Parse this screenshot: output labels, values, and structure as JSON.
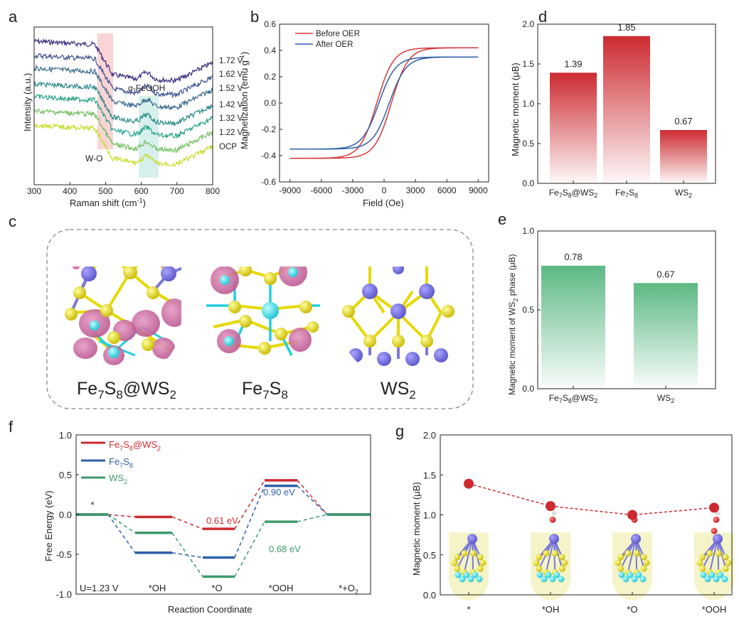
{
  "panels": {
    "a": {
      "label": "a",
      "xlabel": "Raman shift (cm",
      "xlabel_sup": "-1",
      "xlabel_tail": ")",
      "ylabel": "Intensity (a.u.)",
      "xticks": [
        "300",
        "400",
        "500",
        "600",
        "700",
        "800"
      ],
      "annotations": {
        "left": "W-O",
        "right": "α-FeOOH"
      },
      "legend": [
        "1.72 V",
        "1.62 V",
        "1.52 V",
        "1.42 V",
        "1.32 V",
        "1.22 V",
        "OCP"
      ],
      "colors": [
        "#3b2c7a",
        "#3d4f8d",
        "#3a6b8f",
        "#2f8b8c",
        "#2aa38a",
        "#73c060",
        "#c7dc2a"
      ]
    },
    "b": {
      "label": "b",
      "xlabel": "Field (Oe)",
      "ylabel": "Magnetization (emu g",
      "ylabel_sup": "-1",
      "ylabel_tail": ")",
      "xticks": [
        "-9000",
        "-6000",
        "-3000",
        "0",
        "3000",
        "6000",
        "9000"
      ],
      "yticks": [
        "0.6",
        "0.4",
        "0.2",
        "0.0",
        "-0.2",
        "-0.4",
        "-0.6"
      ],
      "legend": [
        "Before OER",
        "After  OER"
      ],
      "colors": [
        "#d9363a",
        "#2f5fa8"
      ]
    },
    "c": {
      "label": "c",
      "structures": [
        "Fe7S8@WS2",
        "Fe7S8",
        "WS2"
      ]
    },
    "d": {
      "label": "d",
      "ylabel": "Magnetic moment (μB)"
    },
    "e": {
      "label": "e",
      "ylabel_pre": "Magnetic moment of WS",
      "ylabel_sub": "2",
      "ylabel_post": " phase (μB)"
    },
    "f": {
      "label": "f",
      "ylabel": "Free Energy (eV)",
      "xlabel": "Reaction Coordinate",
      "u_label": "U=1.23 V",
      "annotations": [
        "0.61 eV",
        "0.90 eV",
        "0.68 eV"
      ]
    },
    "g": {
      "label": "g",
      "ylabel": "Magnetic moment (μB)"
    }
  },
  "chart_data": [
    {
      "id": "a",
      "type": "line",
      "title": "",
      "xlabel": "Raman shift (cm-1)",
      "ylabel": "Intensity (a.u.)",
      "xlim": [
        300,
        800
      ],
      "series": [
        {
          "name": "1.72 V"
        },
        {
          "name": "1.62 V"
        },
        {
          "name": "1.52 V"
        },
        {
          "name": "1.42 V"
        },
        {
          "name": "1.32 V"
        },
        {
          "name": "1.22 V"
        },
        {
          "name": "OCP"
        }
      ]
    },
    {
      "id": "b",
      "type": "line",
      "xlabel": "Field (Oe)",
      "ylabel": "Magnetization (emu g-1)",
      "xlim": [
        -10000,
        10000
      ],
      "ylim": [
        -0.6,
        0.6
      ],
      "series": [
        {
          "name": "Before OER",
          "x": [
            -9000,
            -6000,
            -3000,
            -1500,
            0,
            1500,
            3000,
            6000,
            9000
          ],
          "y_ascending": [
            -0.43,
            -0.43,
            -0.41,
            -0.32,
            -0.05,
            0.28,
            0.37,
            0.41,
            0.42
          ],
          "y_descending": [
            -0.43,
            -0.42,
            -0.37,
            -0.28,
            0.05,
            0.32,
            0.4,
            0.42,
            0.42
          ]
        },
        {
          "name": "After  OER",
          "x": [
            -9000,
            -6000,
            -3000,
            -1500,
            0,
            1500,
            3000,
            6000,
            9000
          ],
          "y_ascending": [
            -0.35,
            -0.35,
            -0.32,
            -0.24,
            0.0,
            0.22,
            0.31,
            0.33,
            0.35
          ],
          "y_descending": [
            -0.35,
            -0.34,
            -0.3,
            -0.2,
            0.05,
            0.24,
            0.32,
            0.34,
            0.35
          ]
        }
      ]
    },
    {
      "id": "d",
      "type": "bar",
      "categories": [
        "Fe7S8@WS2",
        "Fe7S8",
        "WS2"
      ],
      "values": [
        1.39,
        1.85,
        0.67
      ],
      "ylabel": "Magnetic moment (μB)",
      "ylim": [
        0,
        2.0
      ],
      "yticks": [
        "0.0",
        "0.5",
        "1.0",
        "1.5",
        "2.0"
      ],
      "color": "#cc2a30"
    },
    {
      "id": "e",
      "type": "bar",
      "categories": [
        "Fe7S8@WS2",
        "WS2"
      ],
      "values": [
        0.78,
        0.67
      ],
      "ylabel": "Magnetic moment of WS2 phase (μB)",
      "ylim": [
        0,
        1.0
      ],
      "yticks": [
        "0.0",
        "0.5",
        "1.0"
      ],
      "color": "#5cb984"
    },
    {
      "id": "f",
      "type": "line",
      "xlabel": "Reaction Coordinate",
      "ylabel": "Free Energy (eV)",
      "ylim": [
        -1.0,
        1.0
      ],
      "yticks": [
        "1.0",
        "0.5",
        "0.0",
        "-0.5",
        "-1.0"
      ],
      "categories": [
        "*",
        "*OH",
        "*O",
        "*OOH",
        "*+O2"
      ],
      "series": [
        {
          "name": "Fe7S8@WS2",
          "values": [
            0.0,
            -0.03,
            -0.18,
            0.43,
            0.0
          ],
          "color": "#cc2a30"
        },
        {
          "name": "Fe7S8",
          "values": [
            0.0,
            -0.48,
            -0.54,
            0.36,
            0.0
          ],
          "color": "#2f5fa8"
        },
        {
          "name": "WS2",
          "values": [
            0.0,
            -0.23,
            -0.78,
            -0.09,
            0.0
          ],
          "color": "#3e9a6c"
        }
      ],
      "annotations": [
        "0.61 eV",
        "0.90 eV",
        "0.68 eV"
      ]
    },
    {
      "id": "g",
      "type": "scatter",
      "ylabel": "Magnetic moment (μB)",
      "ylim": [
        0,
        2.0
      ],
      "yticks": [
        "0.0",
        "0.5",
        "1.0",
        "1.5",
        "2.0"
      ],
      "categories": [
        "*",
        "*OH",
        "*O",
        "*OOH"
      ],
      "values": [
        1.39,
        1.11,
        1.0,
        1.09
      ],
      "color": "#cc2a30"
    }
  ]
}
